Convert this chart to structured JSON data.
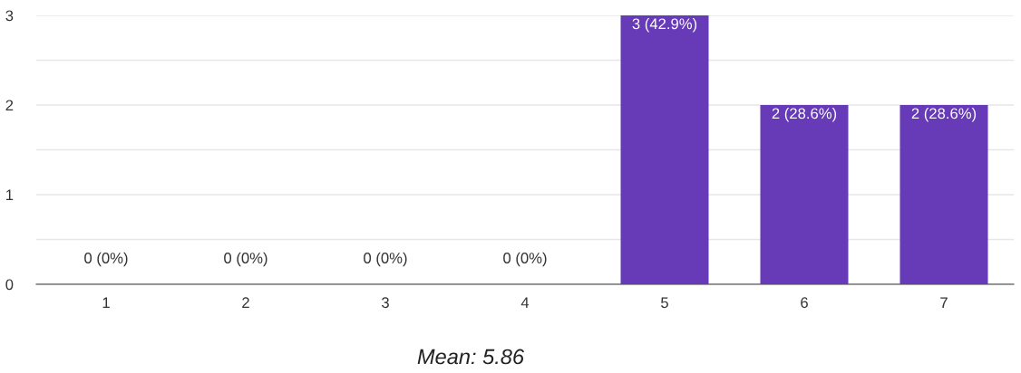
{
  "chart_data": {
    "type": "bar",
    "categories": [
      "1",
      "2",
      "3",
      "4",
      "5",
      "6",
      "7"
    ],
    "values": [
      0,
      0,
      0,
      0,
      3,
      2,
      2
    ],
    "value_labels": [
      "0 (0%)",
      "0 (0%)",
      "0 (0%)",
      "0 (0%)",
      "3 (42.9%)",
      "2 (28.6%)",
      "2 (28.6%)"
    ],
    "color": "#673ab7",
    "ylim": [
      0,
      3
    ],
    "yticks": [
      0,
      {
        "value": 0.5,
        "label": null
      },
      1,
      {
        "value": 1.5,
        "label": null
      },
      2,
      {
        "value": 2.5,
        "label": null
      },
      3
    ],
    "grid": "y",
    "annotations": [
      "Mean: 5.86"
    ]
  }
}
